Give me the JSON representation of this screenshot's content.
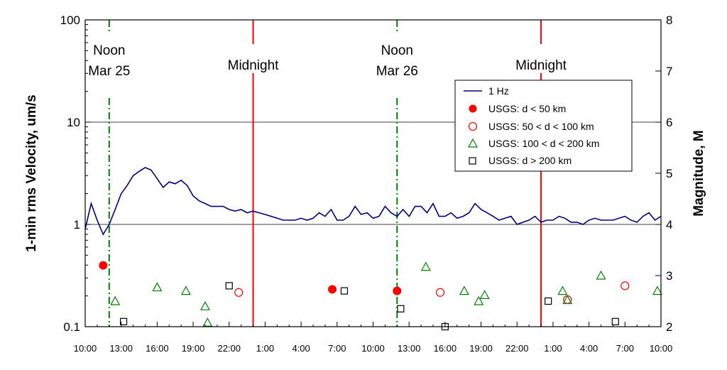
{
  "chart_data": {
    "type": "line",
    "ylabel_left": "1-min rms Velocity, um/s",
    "ylabel_right": "Magnitude, M",
    "y_left_scale": "log",
    "ylim_left": [
      0.1,
      100
    ],
    "y_left_ticks": [
      "0.1",
      "1",
      "10",
      "100"
    ],
    "ylim_right": [
      2,
      8
    ],
    "y_right_ticks": [
      "2",
      "3",
      "4",
      "5",
      "6",
      "7",
      "8"
    ],
    "x_ticks": [
      "10:00",
      "13:00",
      "16:00",
      "19:00",
      "22:00",
      "1:00",
      "4:00",
      "7:00",
      "10:00",
      "13:00",
      "16:00",
      "19:00",
      "22:00",
      "1:00",
      "4:00",
      "7:00",
      "10:00"
    ],
    "xlim_hours": [
      0,
      48
    ],
    "grid": "horizontal at decades",
    "legend_position": "upper-right",
    "annotations": [
      {
        "lines": [
          "Noon",
          "Mar 25"
        ],
        "x_hours": 2,
        "style": "green dash-dot"
      },
      {
        "lines": [
          "Midnight"
        ],
        "x_hours": 14,
        "style": "red solid"
      },
      {
        "lines": [
          "Noon",
          "Mar 26"
        ],
        "x_hours": 26,
        "style": "green dash-dot"
      },
      {
        "lines": [
          "Midnight"
        ],
        "x_hours": 38,
        "style": "red solid"
      }
    ],
    "series": [
      {
        "name": "1 Hz",
        "kind": "line",
        "color": "#000080",
        "x_hours": [
          0.0,
          0.5,
          1.0,
          1.5,
          2.0,
          2.5,
          3.0,
          3.5,
          4.0,
          4.5,
          5.0,
          5.5,
          6.0,
          6.5,
          7.0,
          7.5,
          8.0,
          8.5,
          9.0,
          9.5,
          10.0,
          10.5,
          11.0,
          11.5,
          12.0,
          12.5,
          13.0,
          13.5,
          14.0,
          14.5,
          15.0,
          15.5,
          16.0,
          16.5,
          17.0,
          17.5,
          18.0,
          18.5,
          19.0,
          19.5,
          20.0,
          20.5,
          21.0,
          21.5,
          22.0,
          22.5,
          23.0,
          23.5,
          24.0,
          24.5,
          25.0,
          25.5,
          26.0,
          26.5,
          27.0,
          27.5,
          28.0,
          28.5,
          29.0,
          29.5,
          30.0,
          30.5,
          31.0,
          31.5,
          32.0,
          32.5,
          33.0,
          33.5,
          34.0,
          34.5,
          35.0,
          35.5,
          36.0,
          36.5,
          37.0,
          37.5,
          38.0,
          38.5,
          39.0,
          39.5,
          40.0,
          40.5,
          41.0,
          41.5,
          42.0,
          42.5,
          43.0,
          43.5,
          44.0,
          44.5,
          45.0,
          45.5,
          46.0,
          46.5,
          47.0,
          47.5,
          48.0
        ],
        "values": [
          0.9,
          1.6,
          1.1,
          0.8,
          1.0,
          1.4,
          2.0,
          2.4,
          3.0,
          3.3,
          3.6,
          3.4,
          2.8,
          2.3,
          2.6,
          2.5,
          2.7,
          2.4,
          1.9,
          1.7,
          1.6,
          1.5,
          1.5,
          1.5,
          1.4,
          1.35,
          1.4,
          1.3,
          1.35,
          1.3,
          1.25,
          1.2,
          1.15,
          1.1,
          1.1,
          1.1,
          1.15,
          1.1,
          1.15,
          1.3,
          1.2,
          1.4,
          1.1,
          1.1,
          1.2,
          1.5,
          1.25,
          1.3,
          1.15,
          1.2,
          1.5,
          1.3,
          1.2,
          1.4,
          1.2,
          1.5,
          1.5,
          1.3,
          1.6,
          1.2,
          1.2,
          1.3,
          1.15,
          1.2,
          1.3,
          1.6,
          1.4,
          1.3,
          1.2,
          1.1,
          1.15,
          1.2,
          1.0,
          1.05,
          1.1,
          1.2,
          1.05,
          1.1,
          1.1,
          1.2,
          1.15,
          1.05,
          1.05,
          1.0,
          1.1,
          1.15,
          1.1,
          1.1,
          1.1,
          1.15,
          1.2,
          1.1,
          1.05,
          1.2,
          1.3,
          1.1,
          1.2
        ]
      },
      {
        "name": "USGS: d < 50 km",
        "kind": "marker",
        "marker": "filled-circle",
        "color": "#ff0000",
        "x_hours": [
          1.5,
          20.6,
          26.0
        ],
        "magnitudes": [
          3.2,
          2.73,
          2.7
        ]
      },
      {
        "name": "USGS: 50 < d < 100 km",
        "kind": "marker",
        "marker": "open-circle",
        "color": "#ff0000",
        "x_hours": [
          12.8,
          29.6,
          40.2,
          45.0
        ],
        "magnitudes": [
          2.67,
          2.67,
          2.53,
          2.8
        ]
      },
      {
        "name": "USGS: 100 < d < 200 km",
        "kind": "marker",
        "marker": "open-triangle",
        "color": "#008000",
        "x_hours": [
          2.5,
          6.0,
          8.4,
          10.0,
          10.2,
          28.4,
          31.6,
          32.8,
          33.3,
          39.8,
          40.2,
          43.0,
          47.7
        ],
        "magnitudes": [
          2.5,
          2.77,
          2.7,
          2.4,
          2.08,
          3.17,
          2.7,
          2.5,
          2.62,
          2.7,
          2.52,
          3.0,
          2.7
        ]
      },
      {
        "name": "USGS: d > 200 km",
        "kind": "marker",
        "marker": "open-square",
        "color": "#000000",
        "x_hours": [
          3.2,
          12.0,
          21.6,
          26.3,
          30.0,
          38.6,
          44.2
        ],
        "magnitudes": [
          2.1,
          2.8,
          2.7,
          2.35,
          2.0,
          2.5,
          2.1
        ]
      }
    ]
  }
}
